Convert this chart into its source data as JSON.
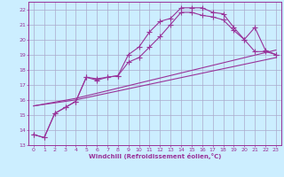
{
  "xlabel": "Windchill (Refroidissement éolien,°C)",
  "ylim": [
    13.0,
    22.5
  ],
  "xlim": [
    -0.5,
    23.5
  ],
  "yticks": [
    13,
    14,
    15,
    16,
    17,
    18,
    19,
    20,
    21,
    22
  ],
  "xticks": [
    0,
    1,
    2,
    3,
    4,
    5,
    6,
    7,
    8,
    9,
    10,
    11,
    12,
    13,
    14,
    15,
    16,
    17,
    18,
    19,
    20,
    21,
    22,
    23
  ],
  "bg_color": "#cceeff",
  "grid_color": "#aaaacc",
  "line_color": "#993399",
  "curve1_x": [
    0,
    1,
    2,
    3,
    4,
    5,
    6,
    7,
    8,
    9,
    10,
    11,
    12,
    13,
    14,
    15,
    16,
    17,
    18,
    19,
    20,
    21,
    22,
    23
  ],
  "curve1_y": [
    13.7,
    13.5,
    15.1,
    15.5,
    15.9,
    17.5,
    17.4,
    17.5,
    17.6,
    19.0,
    19.5,
    20.5,
    21.2,
    21.4,
    22.1,
    22.1,
    22.1,
    21.8,
    21.7,
    20.8,
    20.0,
    20.8,
    19.3,
    19.0
  ],
  "curve2_x": [
    0,
    1,
    2,
    3,
    4,
    5,
    6,
    7,
    8,
    9,
    10,
    11,
    12,
    13,
    14,
    15,
    16,
    17,
    18,
    19,
    20,
    21,
    22,
    23
  ],
  "curve2_y": [
    13.7,
    13.5,
    15.1,
    15.5,
    15.9,
    17.5,
    17.3,
    17.5,
    17.6,
    18.5,
    18.8,
    19.5,
    20.2,
    21.0,
    21.8,
    21.8,
    21.6,
    21.5,
    21.3,
    20.6,
    20.0,
    19.2,
    19.2,
    19.0
  ],
  "curve3_x": [
    0,
    4,
    23
  ],
  "curve3_y": [
    15.6,
    16.1,
    19.3
  ],
  "curve4_x": [
    0,
    4,
    23
  ],
  "curve4_y": [
    15.6,
    16.0,
    18.8
  ]
}
